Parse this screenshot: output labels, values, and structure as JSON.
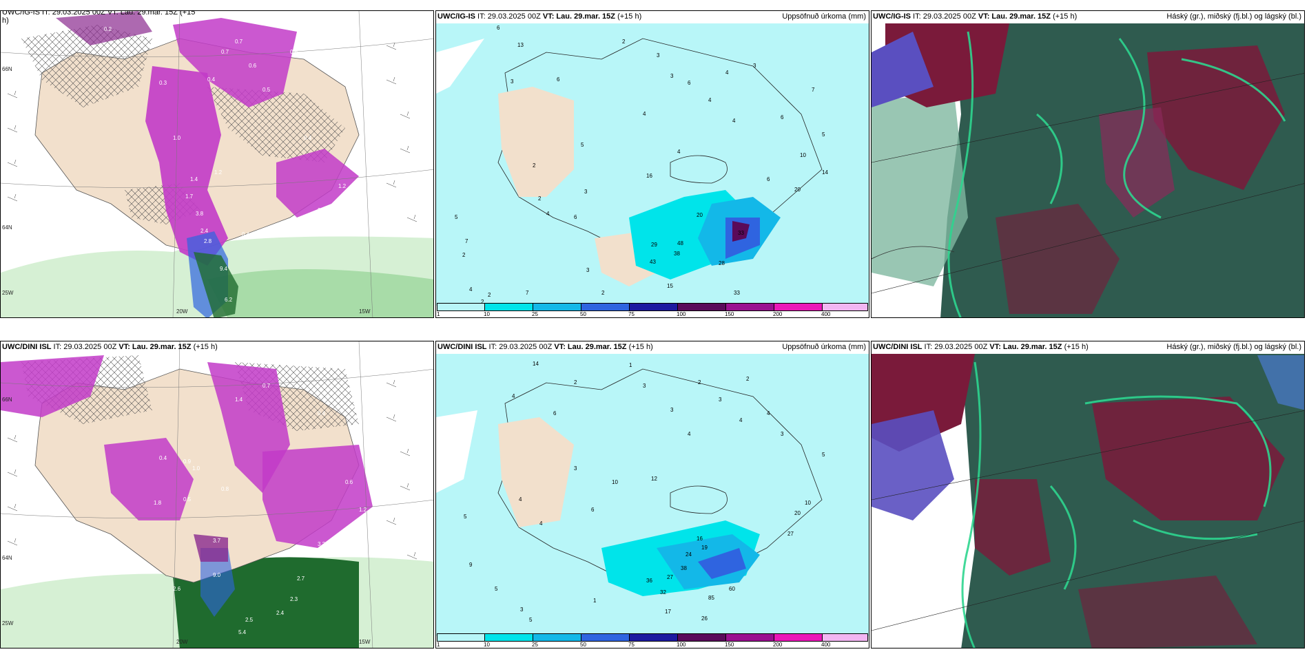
{
  "panels": {
    "p1": {
      "header": "UWC/IG-IS IT: 29.03.2025 00Z VT: Lau. 29.mar. 15Z (+15",
      "header_2": "h)"
    },
    "p2": {
      "model": "UWC/IG-IS",
      "it": " IT: 29.03.2025 00Z ",
      "vt": "VT: Lau. 29.mar. 15Z",
      "lead": " (+15 h)",
      "title": "Uppsöfnuð úrkoma (mm)"
    },
    "p3": {
      "model": "UWC/IG-IS",
      "it": " IT: 29.03.2025 00Z ",
      "vt": "VT: Lau. 29.mar. 15Z",
      "lead": " (+15 h)",
      "title": "Háský (gr.), miðský (fj.bl.) og lágský (bl.)"
    },
    "p4": {
      "model": "UWC/DINI ISL",
      "it": " IT: 29.03.2025 00Z ",
      "vt": "VT: Lau. 29.mar. 15Z",
      "lead": " (+15 h)"
    },
    "p5": {
      "model": "UWC/DINI ISL",
      "it": " IT: 29.03.2025 00Z ",
      "vt": "VT: Lau. 29.mar. 15Z",
      "lead": " (+15 h)",
      "title": "Uppsöfnuð úrkoma (mm)"
    },
    "p6": {
      "model": "UWC/DINI ISL",
      "it": " IT: 29.03.2025 00Z ",
      "vt": "VT: Lau. 29.mar. 15Z",
      "lead": " (+15 h)",
      "title": "Háský (gr.), miðský (fj.bl.) og lágský (bl.)"
    }
  },
  "axes": {
    "lon_20w": "20W",
    "lon_15w": "15W",
    "lon_25w": "25W",
    "lat_66n": "66N",
    "lat_64n": "64N"
  },
  "colorbar": {
    "ticks": [
      "1",
      "10",
      "25",
      "50",
      "75",
      "100",
      "150",
      "200",
      "400"
    ],
    "colors": [
      "#b8f6f8",
      "#00e4ea",
      "#13b8e8",
      "#2f64e0",
      "#1e1aa0",
      "#5a0a5a",
      "#9a1090",
      "#ea18b8",
      "#f2b6f2"
    ]
  },
  "precip_labels_top": [
    "6",
    "13",
    "3",
    "6",
    "2",
    "3",
    "3",
    "6",
    "4",
    "3",
    "4",
    "4",
    "4",
    "6",
    "7",
    "5",
    "5",
    "4",
    "6",
    "3",
    "6",
    "16",
    "14",
    "2",
    "4",
    "3",
    "2",
    "5",
    "7",
    "2",
    "4",
    "2",
    "29",
    "48",
    "38",
    "43",
    "20",
    "33",
    "28",
    "15",
    "33",
    "10",
    "20",
    "2",
    "7",
    "2"
  ],
  "precip_labels_bottom": [
    "14",
    "2",
    "4",
    "6",
    "3",
    "1",
    "2",
    "2",
    "3",
    "3",
    "4",
    "4",
    "4",
    "3",
    "3",
    "5",
    "10",
    "12",
    "4",
    "4",
    "6",
    "5",
    "16",
    "19",
    "24",
    "38",
    "27",
    "32",
    "36",
    "17",
    "26",
    "85",
    "60",
    "27",
    "10",
    "20",
    "9",
    "5",
    "3",
    "5",
    "1"
  ],
  "snow_labels_top": [
    "0.2",
    "0.7",
    "0.6",
    "0.4",
    "0.5",
    "0.3",
    "1.0",
    "1.2",
    "3.8",
    "2.4",
    "2.8",
    "0.4",
    "9.4",
    "6.2",
    "0.7",
    "0.6",
    "3.1",
    "1.2",
    "0.5",
    "0.4",
    "0.3",
    "1.4",
    "1.7"
  ],
  "snow_labels_bottom": [
    "0.3",
    "0.7",
    "0.4",
    "0.9",
    "1.0",
    "1.4",
    "1.8",
    "0.5",
    "0.8",
    "3.7",
    "9.0",
    "5.4",
    "2.5",
    "2.3",
    "2.4",
    "2.7",
    "3.2",
    "0.4",
    "0.6",
    "1.2",
    "2.6"
  ],
  "colors": {
    "land": "#f2e0cc",
    "light_cyan": "#b8f6f8",
    "magenta": "#c23bc8",
    "purple": "#8a2a8e",
    "green_light": "#bfe8bf",
    "green_dark": "#1f6b2e",
    "dark_teal": "#2f5b4f",
    "maroon": "#7a1a3a",
    "mint": "#2ed58f"
  }
}
